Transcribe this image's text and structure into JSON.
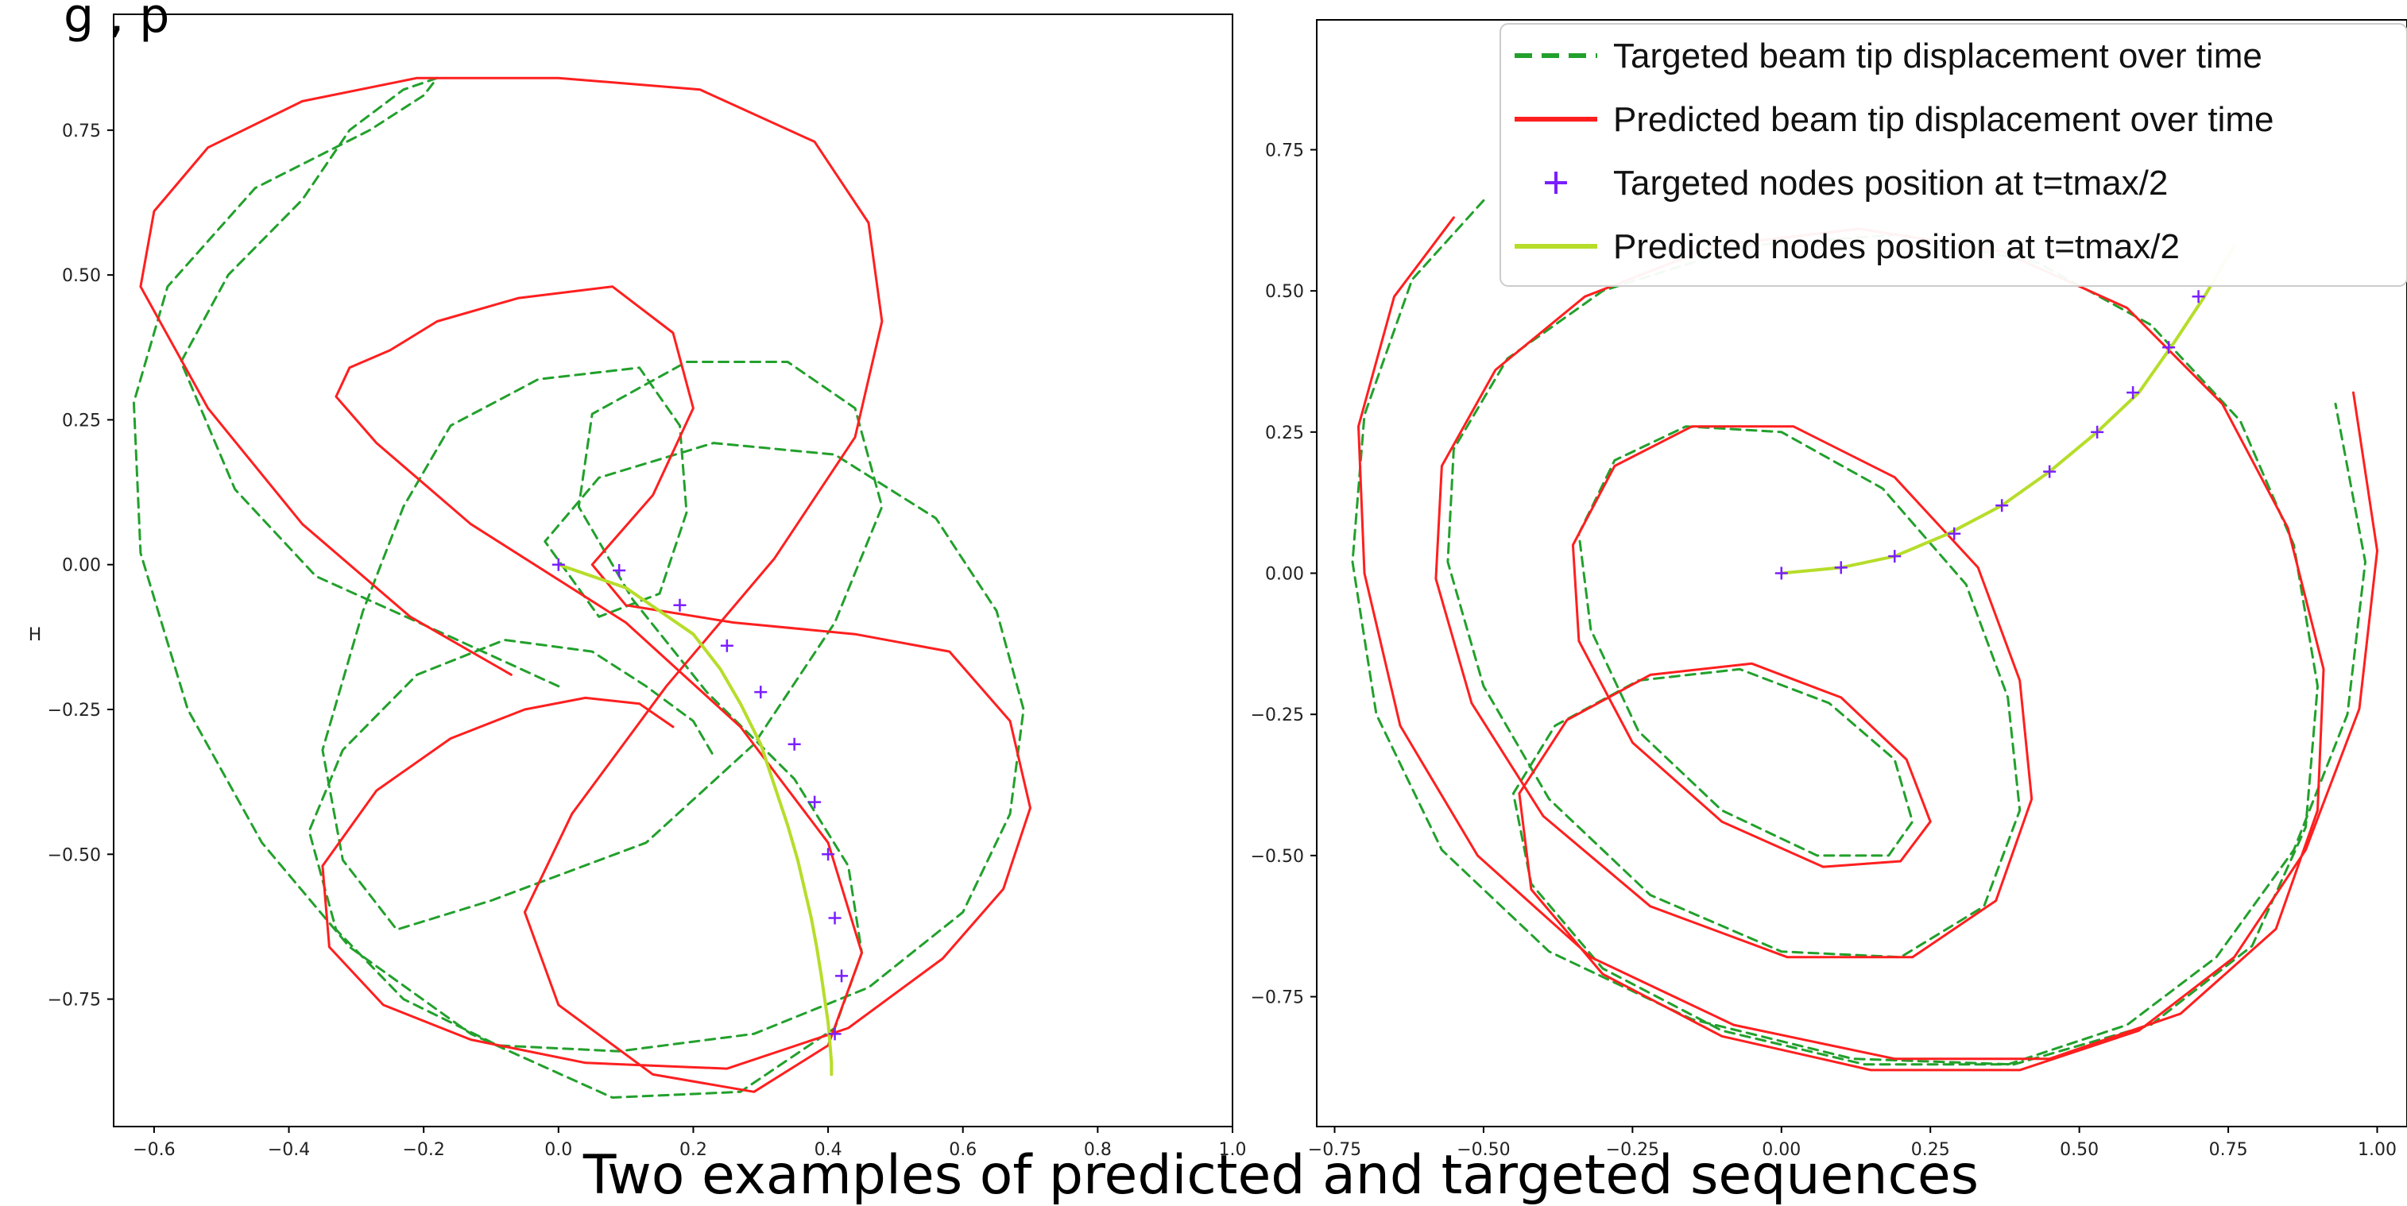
{
  "header_fragment": "g ,    p",
  "caption": "Two examples of predicted and targeted sequences",
  "colors": {
    "target_line": "#22a02c",
    "predicted_line": "#ff1f1f",
    "target_nodes": "#7a1fff",
    "predicted_nodes": "#b6dd2a",
    "axes": "#000000"
  },
  "chart_data": [
    {
      "type": "line",
      "title": "",
      "xlabel": "",
      "ylabel": "",
      "y_axis_marker": "H",
      "xlim": [
        -0.66,
        1.0
      ],
      "ylim": [
        -0.97,
        0.95
      ],
      "xticks": [
        -0.6,
        -0.4,
        -0.2,
        0.0,
        0.2,
        0.4,
        0.6,
        0.8,
        1.0
      ],
      "xtick_labels": [
        "−0.6",
        "−0.4",
        "−0.2",
        "0.0",
        "0.2",
        "0.4",
        "0.6",
        "0.8",
        "1.0"
      ],
      "yticks": [
        0.75,
        0.5,
        0.25,
        0.0,
        -0.25,
        -0.5,
        -0.75
      ],
      "ytick_labels": [
        "0.75",
        "0.50",
        "0.25",
        "0.00",
        "−0.25",
        "−0.50",
        "−0.75"
      ],
      "grid": false,
      "series": [
        {
          "kind": "dashed-line",
          "color": "#22a02c",
          "x": [
            0.0,
            -0.15,
            -0.36,
            -0.48,
            -0.56,
            -0.49,
            -0.38,
            -0.31,
            -0.23,
            -0.18,
            -0.2,
            -0.28,
            -0.45,
            -0.58,
            -0.63,
            -0.62,
            -0.55,
            -0.44,
            -0.31,
            -0.13,
            0.08,
            0.27,
            0.41,
            0.45,
            0.43,
            0.35,
            0.22,
            0.11,
            0.03,
            0.05,
            0.19,
            0.34,
            0.44,
            0.48,
            0.41,
            0.29,
            0.13,
            -0.1,
            -0.24,
            -0.32,
            -0.35,
            -0.29,
            -0.23,
            -0.16,
            -0.03,
            0.12,
            0.18,
            0.19,
            0.15,
            0.06,
            -0.02,
            0.06,
            0.23,
            0.41,
            0.56,
            0.65,
            0.69,
            0.67,
            0.6,
            0.46,
            0.29,
            0.09,
            -0.09,
            -0.23,
            -0.33,
            -0.37,
            -0.32,
            -0.21,
            -0.08,
            0.05,
            0.13,
            0.2,
            0.23
          ],
          "y": [
            -0.21,
            -0.13,
            -0.02,
            0.13,
            0.35,
            0.5,
            0.63,
            0.75,
            0.82,
            0.84,
            0.81,
            0.75,
            0.65,
            0.48,
            0.28,
            0.02,
            -0.25,
            -0.48,
            -0.66,
            -0.81,
            -0.92,
            -0.91,
            -0.8,
            -0.67,
            -0.52,
            -0.37,
            -0.22,
            -0.06,
            0.1,
            0.26,
            0.35,
            0.35,
            0.27,
            0.1,
            -0.1,
            -0.31,
            -0.48,
            -0.58,
            -0.63,
            -0.51,
            -0.32,
            -0.08,
            0.1,
            0.24,
            0.32,
            0.34,
            0.24,
            0.09,
            -0.05,
            -0.09,
            0.04,
            0.15,
            0.21,
            0.19,
            0.08,
            -0.08,
            -0.25,
            -0.43,
            -0.6,
            -0.73,
            -0.81,
            -0.84,
            -0.83,
            -0.75,
            -0.63,
            -0.46,
            -0.32,
            -0.19,
            -0.13,
            -0.15,
            -0.21,
            -0.27,
            -0.33
          ]
        },
        {
          "kind": "solid-line",
          "color": "#ff1f1f",
          "x": [
            -0.07,
            -0.22,
            -0.38,
            -0.52,
            -0.62,
            -0.6,
            -0.52,
            -0.38,
            -0.21,
            0.0,
            0.21,
            0.38,
            0.46,
            0.48,
            0.44,
            0.32,
            0.16,
            0.02,
            -0.05,
            0.0,
            0.14,
            0.29,
            0.4,
            0.45,
            0.4,
            0.27,
            0.1,
            -0.13,
            -0.27,
            -0.33,
            -0.31,
            -0.25,
            -0.18,
            -0.06,
            0.08,
            0.17,
            0.2,
            0.14,
            0.05,
            0.1,
            0.26,
            0.44,
            0.58,
            0.67,
            0.7,
            0.66,
            0.57,
            0.43,
            0.25,
            0.04,
            -0.13,
            -0.26,
            -0.34,
            -0.35,
            -0.27,
            -0.16,
            -0.05,
            0.04,
            0.12,
            0.17
          ],
          "y": [
            -0.19,
            -0.09,
            0.07,
            0.27,
            0.48,
            0.61,
            0.72,
            0.8,
            0.84,
            0.84,
            0.82,
            0.73,
            0.59,
            0.42,
            0.22,
            0.01,
            -0.21,
            -0.43,
            -0.6,
            -0.76,
            -0.88,
            -0.91,
            -0.83,
            -0.67,
            -0.48,
            -0.28,
            -0.1,
            0.07,
            0.21,
            0.29,
            0.34,
            0.37,
            0.42,
            0.46,
            0.48,
            0.4,
            0.27,
            0.12,
            0.0,
            -0.07,
            -0.1,
            -0.12,
            -0.15,
            -0.27,
            -0.42,
            -0.56,
            -0.68,
            -0.8,
            -0.87,
            -0.86,
            -0.82,
            -0.76,
            -0.66,
            -0.52,
            -0.39,
            -0.3,
            -0.25,
            -0.23,
            -0.24,
            -0.28
          ]
        },
        {
          "kind": "solid-line",
          "color": "#b6dd2a",
          "x": [
            0.0,
            0.05,
            0.1,
            0.15,
            0.2,
            0.24,
            0.27,
            0.3,
            0.32,
            0.34,
            0.355,
            0.365,
            0.375,
            0.383,
            0.39,
            0.395,
            0.4,
            0.403,
            0.405,
            0.405
          ],
          "y": [
            0.0,
            -0.02,
            -0.04,
            -0.08,
            -0.12,
            -0.18,
            -0.24,
            -0.31,
            -0.38,
            -0.45,
            -0.51,
            -0.56,
            -0.61,
            -0.66,
            -0.71,
            -0.75,
            -0.79,
            -0.83,
            -0.86,
            -0.88
          ]
        },
        {
          "kind": "markers",
          "color": "#7a1fff",
          "x": [
            0.0,
            0.09,
            0.18,
            0.25,
            0.3,
            0.35,
            0.38,
            0.4,
            0.41,
            0.42,
            0.41
          ],
          "y": [
            0.0,
            -0.01,
            -0.07,
            -0.14,
            -0.22,
            -0.31,
            -0.41,
            -0.5,
            -0.61,
            -0.71,
            -0.81
          ]
        }
      ]
    },
    {
      "type": "line",
      "title": "",
      "xlabel": "",
      "ylabel": "",
      "xlim": [
        -0.78,
        1.05
      ],
      "ylim": [
        -0.98,
        0.98
      ],
      "xticks": [
        -0.75,
        -0.5,
        -0.25,
        0.0,
        0.25,
        0.5,
        0.75,
        1.0
      ],
      "xtick_labels": [
        "−0.75",
        "−0.50",
        "−0.25",
        "0.00",
        "0.25",
        "0.50",
        "0.75",
        "1.00"
      ],
      "yticks": [
        0.75,
        0.5,
        0.25,
        0.0,
        -0.25,
        -0.5,
        -0.75
      ],
      "ytick_labels": [
        "0.75",
        "0.50",
        "0.25",
        "0.00",
        "−0.25",
        "−0.50",
        "−0.75"
      ],
      "grid": false,
      "legend_position": "top-right",
      "legend": [
        {
          "label": "Targeted beam tip displacement over time",
          "marker": "dashed-line",
          "color": "#22a02c"
        },
        {
          "label": "Predicted beam tip displacement over time",
          "marker": "solid-line",
          "color": "#ff1f1f"
        },
        {
          "label": "Targeted nodes position at t=tmax/2",
          "marker": "plus",
          "color": "#7a1fff"
        },
        {
          "label": "Predicted nodes position at t=tmax/2",
          "marker": "solid-line",
          "color": "#b6dd2a"
        }
      ],
      "series": [
        {
          "kind": "dashed-line",
          "color": "#22a02c",
          "x": [
            -0.5,
            -0.62,
            -0.7,
            -0.72,
            -0.68,
            -0.57,
            -0.39,
            -0.15,
            0.12,
            0.39,
            0.62,
            0.79,
            0.88,
            0.9,
            0.86,
            0.77,
            0.62,
            0.43,
            0.2,
            -0.06,
            -0.3,
            -0.46,
            -0.55,
            -0.56,
            -0.5,
            -0.39,
            -0.22,
            0.0,
            0.2,
            0.34,
            0.4,
            0.38,
            0.31,
            0.17,
            0.0,
            -0.16,
            -0.28,
            -0.34,
            -0.32,
            -0.24,
            -0.1,
            0.06,
            0.18,
            0.22,
            0.19,
            0.08,
            -0.07,
            -0.24,
            -0.38,
            -0.45,
            -0.42,
            -0.3,
            -0.1,
            0.14,
            0.38,
            0.58,
            0.73,
            0.86,
            0.95,
            0.98,
            0.93
          ],
          "y": [
            0.66,
            0.52,
            0.28,
            0.02,
            -0.25,
            -0.49,
            -0.67,
            -0.79,
            -0.86,
            -0.87,
            -0.8,
            -0.66,
            -0.45,
            -0.2,
            0.05,
            0.27,
            0.44,
            0.55,
            0.6,
            0.58,
            0.5,
            0.38,
            0.22,
            0.02,
            -0.2,
            -0.4,
            -0.57,
            -0.67,
            -0.68,
            -0.59,
            -0.42,
            -0.22,
            -0.02,
            0.15,
            0.25,
            0.26,
            0.2,
            0.07,
            -0.1,
            -0.28,
            -0.42,
            -0.5,
            -0.5,
            -0.44,
            -0.33,
            -0.23,
            -0.17,
            -0.19,
            -0.27,
            -0.39,
            -0.55,
            -0.7,
            -0.81,
            -0.87,
            -0.87,
            -0.8,
            -0.68,
            -0.49,
            -0.25,
            0.02,
            0.3
          ]
        },
        {
          "kind": "solid-line",
          "color": "#ff1f1f",
          "x": [
            -0.55,
            -0.65,
            -0.71,
            -0.7,
            -0.64,
            -0.51,
            -0.32,
            -0.08,
            0.19,
            0.45,
            0.67,
            0.83,
            0.9,
            0.91,
            0.85,
            0.74,
            0.58,
            0.37,
            0.13,
            -0.11,
            -0.33,
            -0.48,
            -0.57,
            -0.58,
            -0.52,
            -0.4,
            -0.22,
            0.01,
            0.22,
            0.36,
            0.42,
            0.4,
            0.33,
            0.19,
            0.02,
            -0.15,
            -0.28,
            -0.35,
            -0.34,
            -0.25,
            -0.1,
            0.07,
            0.2,
            0.25,
            0.21,
            0.1,
            -0.05,
            -0.22,
            -0.36,
            -0.44,
            -0.42,
            -0.3,
            -0.1,
            0.15,
            0.4,
            0.6,
            0.76,
            0.88,
            0.97,
            1.0,
            0.96
          ],
          "y": [
            0.63,
            0.49,
            0.26,
            0.0,
            -0.27,
            -0.5,
            -0.68,
            -0.8,
            -0.86,
            -0.86,
            -0.78,
            -0.63,
            -0.42,
            -0.17,
            0.08,
            0.3,
            0.47,
            0.57,
            0.61,
            0.58,
            0.49,
            0.36,
            0.19,
            -0.01,
            -0.23,
            -0.43,
            -0.59,
            -0.68,
            -0.68,
            -0.58,
            -0.4,
            -0.19,
            0.01,
            0.17,
            0.26,
            0.26,
            0.19,
            0.05,
            -0.12,
            -0.3,
            -0.44,
            -0.52,
            -0.51,
            -0.44,
            -0.33,
            -0.22,
            -0.16,
            -0.18,
            -0.26,
            -0.39,
            -0.56,
            -0.71,
            -0.82,
            -0.88,
            -0.88,
            -0.81,
            -0.68,
            -0.49,
            -0.24,
            0.04,
            0.32
          ]
        },
        {
          "kind": "solid-line",
          "color": "#b6dd2a",
          "x": [
            0.0,
            0.1,
            0.19,
            0.28,
            0.37,
            0.45,
            0.53,
            0.6,
            0.66,
            0.71,
            0.76
          ],
          "y": [
            0.0,
            0.01,
            0.03,
            0.07,
            0.12,
            0.18,
            0.25,
            0.32,
            0.41,
            0.49,
            0.58
          ]
        },
        {
          "kind": "markers",
          "color": "#7a1fff",
          "x": [
            0.0,
            0.1,
            0.19,
            0.29,
            0.37,
            0.45,
            0.53,
            0.59,
            0.65,
            0.7
          ],
          "y": [
            0.0,
            0.01,
            0.03,
            0.07,
            0.12,
            0.18,
            0.25,
            0.32,
            0.4,
            0.49
          ]
        }
      ]
    }
  ]
}
